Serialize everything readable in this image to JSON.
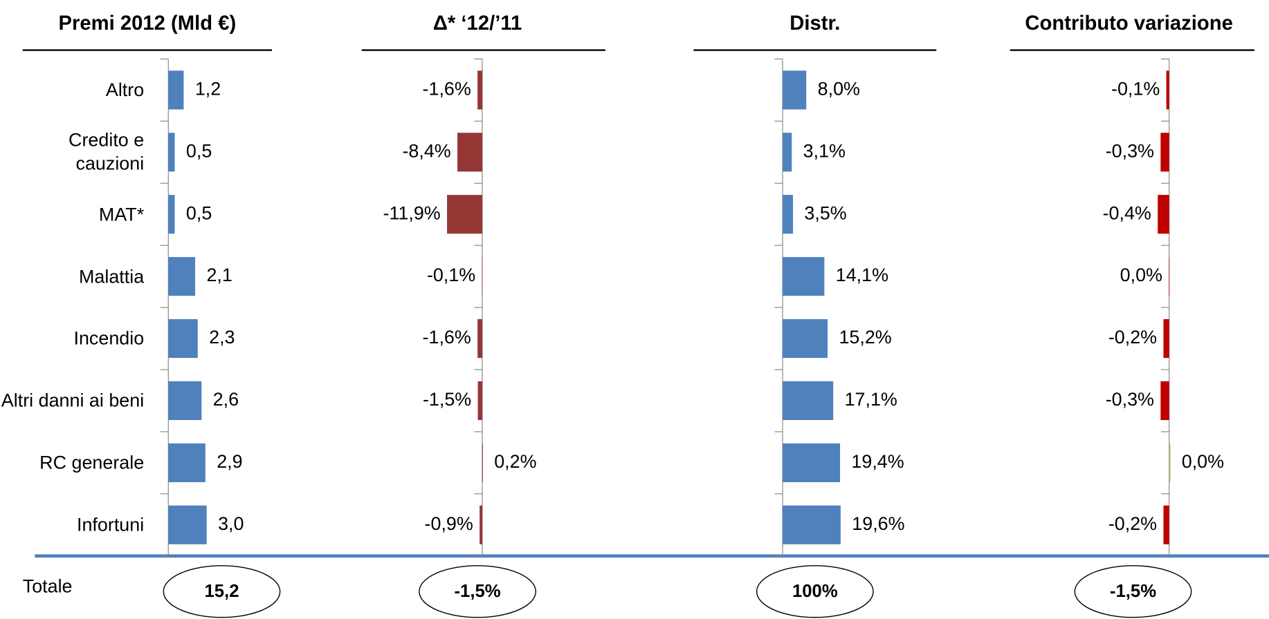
{
  "total_row_label": "Totale",
  "chart_data": [
    {
      "type": "hbar",
      "title": "Premi 2012 (Mld €)",
      "categories": [
        "Altro",
        "Credito e cauzioni",
        "MAT*",
        "Malattia",
        "Incendio",
        "Altri danni ai beni",
        "RC generale",
        "Infortuni"
      ],
      "values": [
        1.2,
        0.5,
        0.5,
        2.1,
        2.3,
        2.6,
        2.9,
        3.0
      ],
      "value_labels": [
        "1,2",
        "0,5",
        "0,5",
        "2,1",
        "2,3",
        "2,6",
        "2,9",
        "3,0"
      ],
      "color": "#4f81bd",
      "xlim": [
        0,
        19
      ],
      "total": 15.2,
      "total_label": "15,2"
    },
    {
      "type": "hbar",
      "title": "Δ* ‘12/’11",
      "values": [
        -1.6,
        -8.4,
        -11.9,
        -0.1,
        -1.6,
        -1.5,
        0.2,
        -0.9
      ],
      "value_labels": [
        "-1,6%",
        "-8,4%",
        "-11,9%",
        "-0,1%",
        "-1,6%",
        "-1,5%",
        "0,2%",
        "-0,9%"
      ],
      "color": "#953735",
      "xlim": [
        -12,
        70
      ],
      "total": -1.5,
      "total_label": "-1,5%"
    },
    {
      "type": "hbar",
      "title": "Distr.",
      "values": [
        8.0,
        3.1,
        3.5,
        14.1,
        15.2,
        17.1,
        19.4,
        19.6
      ],
      "value_labels": [
        "8,0%",
        "3,1%",
        "3,5%",
        "14,1%",
        "15,2%",
        "17,1%",
        "19,4%",
        "19,6%"
      ],
      "color": "#4f81bd",
      "xlim": [
        0,
        82
      ],
      "total": 100,
      "total_label": "100%"
    },
    {
      "type": "hbar",
      "title": "Contributo variazione",
      "values": [
        -0.1,
        -0.3,
        -0.4,
        -0.01,
        -0.2,
        -0.3,
        0.04,
        -0.2
      ],
      "value_labels": [
        "-0,1%",
        "-0,3%",
        "-0,4%",
        "0,0%",
        "-0,2%",
        "-0,3%",
        "0,0%",
        "-0,2%"
      ],
      "colors": [
        "#c00000",
        "#c00000",
        "#c00000",
        "#c00000",
        "#c00000",
        "#c00000",
        "#9bbb59",
        "#c00000"
      ],
      "xlim": [
        -0.5,
        8
      ],
      "total": -1.5,
      "total_label": "-1,5%"
    }
  ]
}
